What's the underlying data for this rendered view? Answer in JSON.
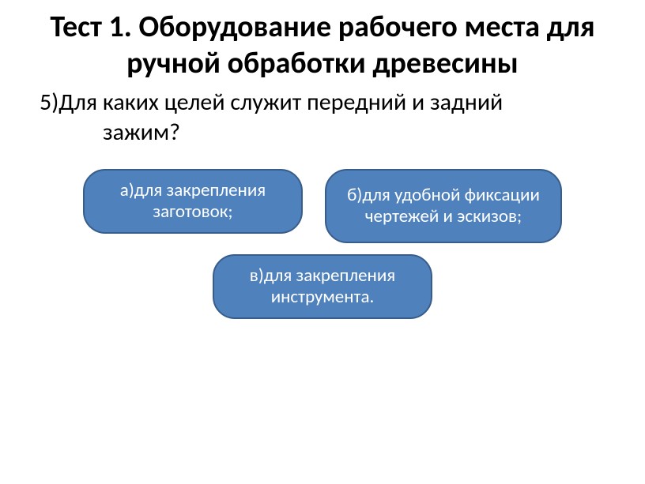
{
  "title": "Тест 1. Оборудование рабочего места для ручной обработки древесины",
  "question_line1": "5)Для каких целей служит передний и задний",
  "question_line2": "зажим?",
  "options": {
    "a": "а)для закрепления заготовок;",
    "b": "б)для удобной фиксации чертежей и эскизов;",
    "c": "в)для закрепления инструмента."
  },
  "colors": {
    "pill_fill": "#4f81bd",
    "pill_border": "#385d8a",
    "pill_text": "#ffffff",
    "background": "#ffffff",
    "text": "#000000"
  }
}
